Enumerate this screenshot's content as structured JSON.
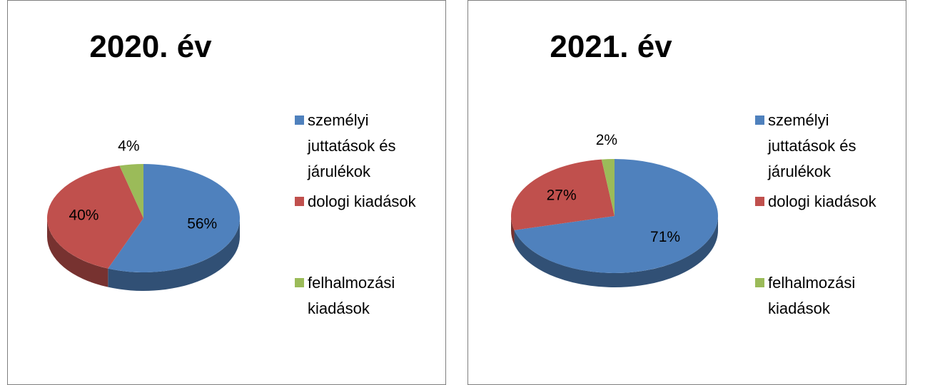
{
  "chart_data": [
    {
      "type": "pie",
      "title": "2020. év",
      "categories": [
        "személyi juttatások és járulékok",
        "dologi kiadások",
        "felhalmozási kiadások"
      ],
      "values": [
        56,
        40,
        4
      ],
      "value_labels": [
        "56%",
        "40%",
        "4%"
      ],
      "colors": [
        "#4f81bd",
        "#c0504d",
        "#9bbb59"
      ],
      "legend": "right"
    },
    {
      "type": "pie",
      "title": "2021. év",
      "categories": [
        "személyi juttatások és járulékok",
        "dologi kiadások",
        "felhalmozási kiadások"
      ],
      "values": [
        71,
        27,
        2
      ],
      "value_labels": [
        "71%",
        "27%",
        "2%"
      ],
      "colors": [
        "#4f81bd",
        "#c0504d",
        "#9bbb59"
      ],
      "legend": "right"
    }
  ]
}
